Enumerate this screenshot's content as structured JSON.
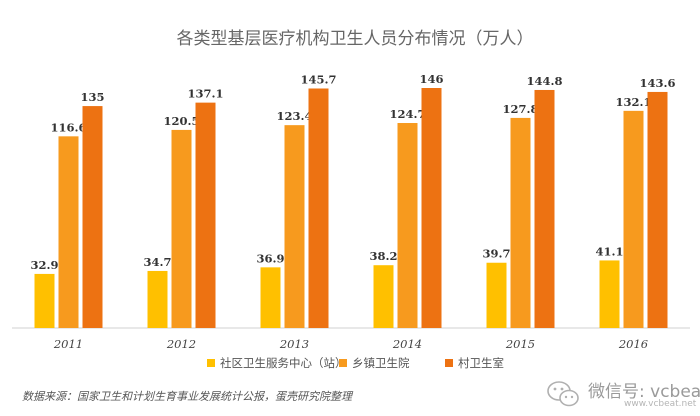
{
  "chart_data": {
    "type": "bar",
    "title": "各类型基层医疗机构卫生人员分布情况（万人）",
    "categories": [
      "2011",
      "2012",
      "2013",
      "2014",
      "2015",
      "2016"
    ],
    "series": [
      {
        "name": "社区卫生服务中心（站）",
        "color": "#ffc000",
        "values": [
          32.9,
          34.7,
          36.9,
          38.2,
          39.7,
          41.1
        ]
      },
      {
        "name": "乡镇卫生院",
        "color": "#f79a1e",
        "values": [
          116.6,
          120.5,
          123.4,
          124.7,
          127.8,
          132.1
        ]
      },
      {
        "name": "村卫生室",
        "color": "#ed7212",
        "values": [
          135,
          137.1,
          145.7,
          146,
          144.8,
          143.6
        ]
      }
    ],
    "ylim": [
      0,
      160
    ],
    "grid": false,
    "legend_position": "bottom"
  },
  "source_note": "数据来源：国家卫生和计划生育事业发展统计公报，蛋壳研究院整理",
  "watermark": {
    "text": "微信号: vcbeat",
    "url": "www.vcbeat.net"
  }
}
